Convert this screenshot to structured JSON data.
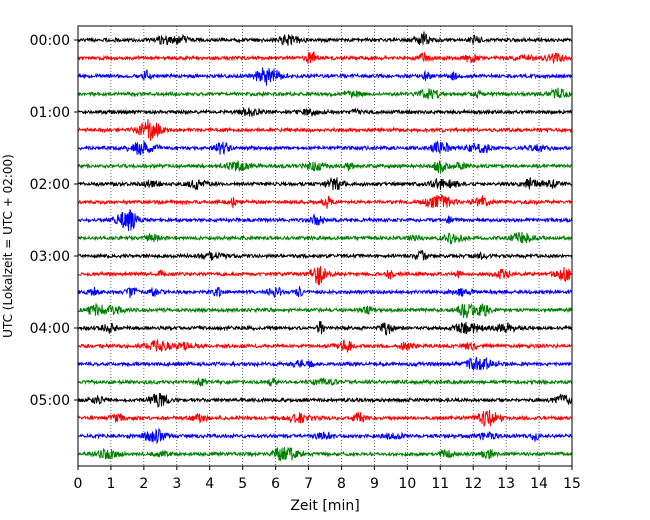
{
  "chart_data": {
    "type": "line",
    "title": "",
    "xlabel": "Zeit  [min]",
    "ylabel": "UTC (Lokalzeit = UTC + 02:00)",
    "xlim": [
      0,
      15
    ],
    "x_ticks": [
      0,
      1,
      2,
      3,
      4,
      5,
      6,
      7,
      8,
      9,
      10,
      11,
      12,
      13,
      14,
      15
    ],
    "x_tick_labels": [
      "0",
      "1",
      "2",
      "3",
      "4",
      "5",
      "6",
      "7",
      "8",
      "9",
      "10",
      "11",
      "12",
      "13",
      "14",
      "15"
    ],
    "y_tick_labels": [
      "00:00",
      "01:00",
      "02:00",
      "03:00",
      "04:00",
      "05:00"
    ],
    "grid": "vertical dotted",
    "trace_interval_minutes": 15,
    "trace_colors": [
      "#000000",
      "#ff0000",
      "#0000ff",
      "#008000"
    ],
    "traces": [
      {
        "start": "00:00",
        "color": "#000000"
      },
      {
        "start": "00:15",
        "color": "#ff0000"
      },
      {
        "start": "00:30",
        "color": "#0000ff"
      },
      {
        "start": "00:45",
        "color": "#008000"
      },
      {
        "start": "01:00",
        "color": "#000000"
      },
      {
        "start": "01:15",
        "color": "#ff0000"
      },
      {
        "start": "01:30",
        "color": "#0000ff"
      },
      {
        "start": "01:45",
        "color": "#008000"
      },
      {
        "start": "02:00",
        "color": "#000000"
      },
      {
        "start": "02:15",
        "color": "#ff0000"
      },
      {
        "start": "02:30",
        "color": "#0000ff"
      },
      {
        "start": "02:45",
        "color": "#008000"
      },
      {
        "start": "03:00",
        "color": "#000000"
      },
      {
        "start": "03:15",
        "color": "#ff0000"
      },
      {
        "start": "03:30",
        "color": "#0000ff"
      },
      {
        "start": "03:45",
        "color": "#008000"
      },
      {
        "start": "04:00",
        "color": "#000000"
      },
      {
        "start": "04:15",
        "color": "#ff0000"
      },
      {
        "start": "04:30",
        "color": "#0000ff"
      },
      {
        "start": "04:45",
        "color": "#008000"
      },
      {
        "start": "05:00",
        "color": "#000000"
      },
      {
        "start": "05:15",
        "color": "#ff0000"
      },
      {
        "start": "05:30",
        "color": "#0000ff"
      },
      {
        "start": "05:45",
        "color": "#008000"
      }
    ]
  }
}
